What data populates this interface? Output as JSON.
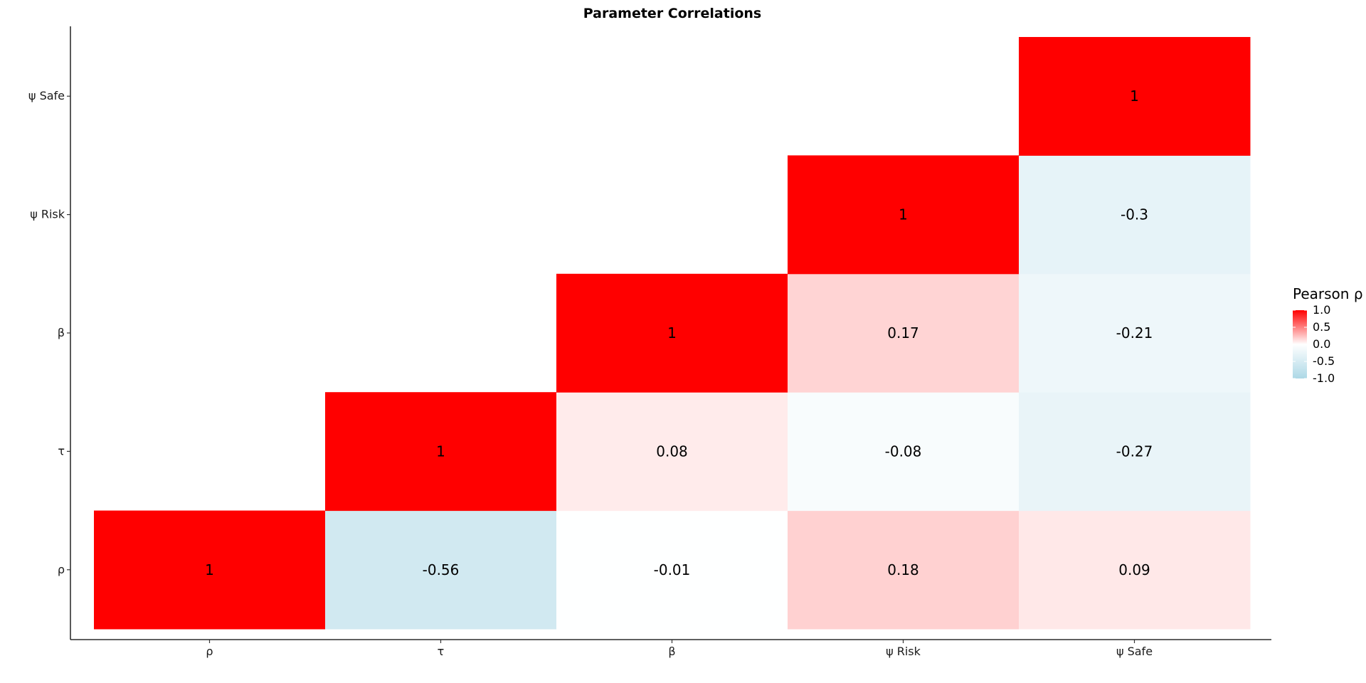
{
  "chart_data": {
    "type": "heatmap",
    "title": "Parameter Correlations",
    "xlabel": "",
    "ylabel": "",
    "x_categories": [
      "ρ",
      "τ",
      "β",
      "ψ Risk",
      "ψ Safe"
    ],
    "y_categories": [
      "ρ",
      "τ",
      "β",
      "ψ Risk",
      "ψ Safe"
    ],
    "cells": [
      {
        "x": "ρ",
        "y": "ρ",
        "value": 1,
        "label": "1"
      },
      {
        "x": "τ",
        "y": "ρ",
        "value": -0.56,
        "label": "-0.56"
      },
      {
        "x": "β",
        "y": "ρ",
        "value": -0.01,
        "label": "-0.01"
      },
      {
        "x": "ψ Risk",
        "y": "ρ",
        "value": 0.18,
        "label": "0.18"
      },
      {
        "x": "ψ Safe",
        "y": "ρ",
        "value": 0.09,
        "label": "0.09"
      },
      {
        "x": "τ",
        "y": "τ",
        "value": 1,
        "label": "1"
      },
      {
        "x": "β",
        "y": "τ",
        "value": 0.08,
        "label": "0.08"
      },
      {
        "x": "ψ Risk",
        "y": "τ",
        "value": -0.08,
        "label": "-0.08"
      },
      {
        "x": "ψ Safe",
        "y": "τ",
        "value": -0.27,
        "label": "-0.27"
      },
      {
        "x": "β",
        "y": "β",
        "value": 1,
        "label": "1"
      },
      {
        "x": "ψ Risk",
        "y": "β",
        "value": 0.17,
        "label": "0.17"
      },
      {
        "x": "ψ Safe",
        "y": "β",
        "value": -0.21,
        "label": "-0.21"
      },
      {
        "x": "ψ Risk",
        "y": "ψ Risk",
        "value": 1,
        "label": "1"
      },
      {
        "x": "ψ Safe",
        "y": "ψ Risk",
        "value": -0.3,
        "label": "-0.3"
      },
      {
        "x": "ψ Safe",
        "y": "ψ Safe",
        "value": 1,
        "label": "1"
      }
    ],
    "legend": {
      "title": "Pearson ρ",
      "placement": "right",
      "ticks": [
        "1.0",
        "0.5",
        "0.0",
        "-0.5",
        "-1.0"
      ],
      "range": [
        -1,
        1
      ],
      "colors": {
        "low": "#add8e6",
        "mid": "#ffffff",
        "high": "#ff0000"
      }
    },
    "grid": false
  }
}
